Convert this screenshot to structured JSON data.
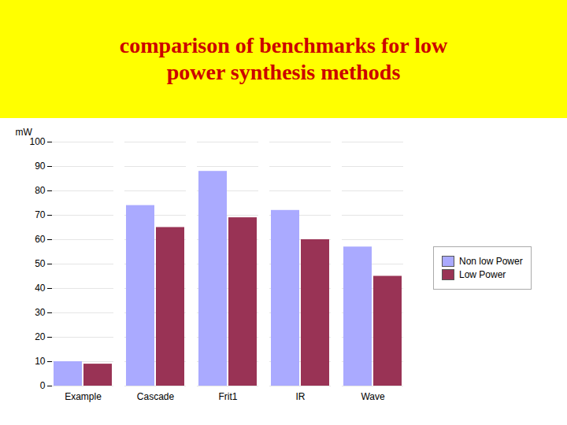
{
  "chart_data": {
    "type": "bar",
    "title": "comparison of benchmarks for low\npower synthesis methods",
    "categories": [
      "Example",
      "Cascade",
      "Frit1",
      "IR",
      "Wave"
    ],
    "series": [
      {
        "name": "Non low Power",
        "color": "#aaaaff",
        "values": [
          10,
          74,
          88,
          72,
          57
        ]
      },
      {
        "name": "Low Power",
        "color": "#993355",
        "values": [
          9,
          65,
          69,
          60,
          45
        ]
      }
    ],
    "ylabel": "mW",
    "ylim": [
      0,
      100
    ],
    "yticks": [
      0,
      10,
      20,
      30,
      40,
      50,
      60,
      70,
      80,
      90,
      100
    ],
    "grid": true,
    "legend": "right"
  }
}
